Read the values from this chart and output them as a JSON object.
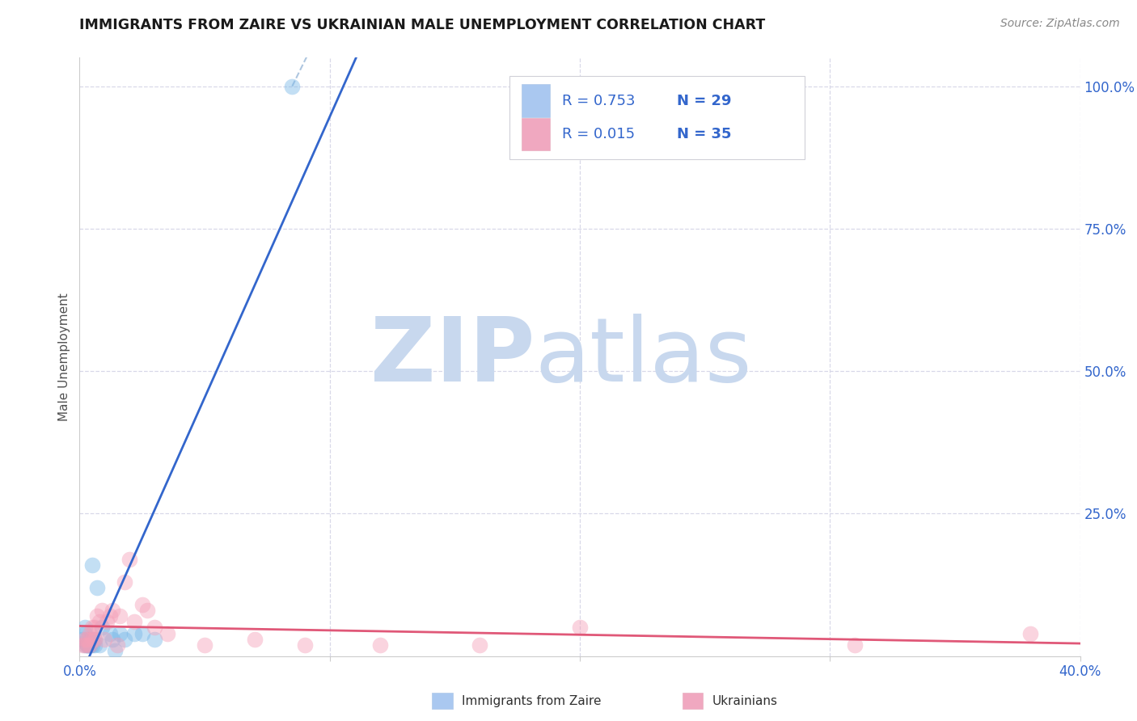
{
  "title": "IMMIGRANTS FROM ZAIRE VS UKRAINIAN MALE UNEMPLOYMENT CORRELATION CHART",
  "source": "Source: ZipAtlas.com",
  "ylabel": "Male Unemployment",
  "right_yticks": [
    "100.0%",
    "75.0%",
    "50.0%",
    "25.0%"
  ],
  "right_ytick_vals": [
    1.0,
    0.75,
    0.5,
    0.25
  ],
  "color_blue": "#7ab8e8",
  "color_pink": "#f4a0b8",
  "line_blue": "#3366cc",
  "line_pink": "#e05878",
  "dash_color": "#9ab8d8",
  "watermark_zip_color": "#c8d8ee",
  "watermark_atlas_color": "#c8d8ee",
  "bg_color": "#ffffff",
  "grid_color": "#d8d8e8",
  "legend_color1": "#aac8f0",
  "legend_color2": "#f0a8c0",
  "text_blue": "#3366cc",
  "text_dark": "#303030",
  "axis_blue": "#3366cc",
  "zaire_x": [
    0.001,
    0.002,
    0.002,
    0.002,
    0.003,
    0.003,
    0.003,
    0.003,
    0.004,
    0.004,
    0.004,
    0.004,
    0.005,
    0.005,
    0.005,
    0.006,
    0.006,
    0.007,
    0.008,
    0.009,
    0.012,
    0.013,
    0.014,
    0.016,
    0.018,
    0.022,
    0.025,
    0.03,
    0.085
  ],
  "zaire_y": [
    0.03,
    0.02,
    0.04,
    0.05,
    0.02,
    0.02,
    0.02,
    0.03,
    0.02,
    0.02,
    0.03,
    0.02,
    0.02,
    0.03,
    0.16,
    0.02,
    0.03,
    0.12,
    0.02,
    0.05,
    0.04,
    0.03,
    0.01,
    0.04,
    0.03,
    0.04,
    0.04,
    0.03,
    1.0
  ],
  "ukr_x": [
    0.001,
    0.002,
    0.002,
    0.003,
    0.003,
    0.004,
    0.004,
    0.005,
    0.005,
    0.006,
    0.006,
    0.007,
    0.008,
    0.009,
    0.01,
    0.011,
    0.012,
    0.013,
    0.015,
    0.016,
    0.018,
    0.02,
    0.022,
    0.025,
    0.027,
    0.03,
    0.035,
    0.05,
    0.07,
    0.09,
    0.12,
    0.16,
    0.2,
    0.31,
    0.38
  ],
  "ukr_y": [
    0.02,
    0.03,
    0.02,
    0.03,
    0.02,
    0.02,
    0.04,
    0.03,
    0.05,
    0.03,
    0.05,
    0.07,
    0.06,
    0.08,
    0.03,
    0.06,
    0.07,
    0.08,
    0.02,
    0.07,
    0.13,
    0.17,
    0.06,
    0.09,
    0.08,
    0.05,
    0.04,
    0.02,
    0.03,
    0.02,
    0.02,
    0.02,
    0.05,
    0.02,
    0.04
  ],
  "xmin": 0.0,
  "xmax": 0.4,
  "ymin": 0.0,
  "ymax": 1.05
}
